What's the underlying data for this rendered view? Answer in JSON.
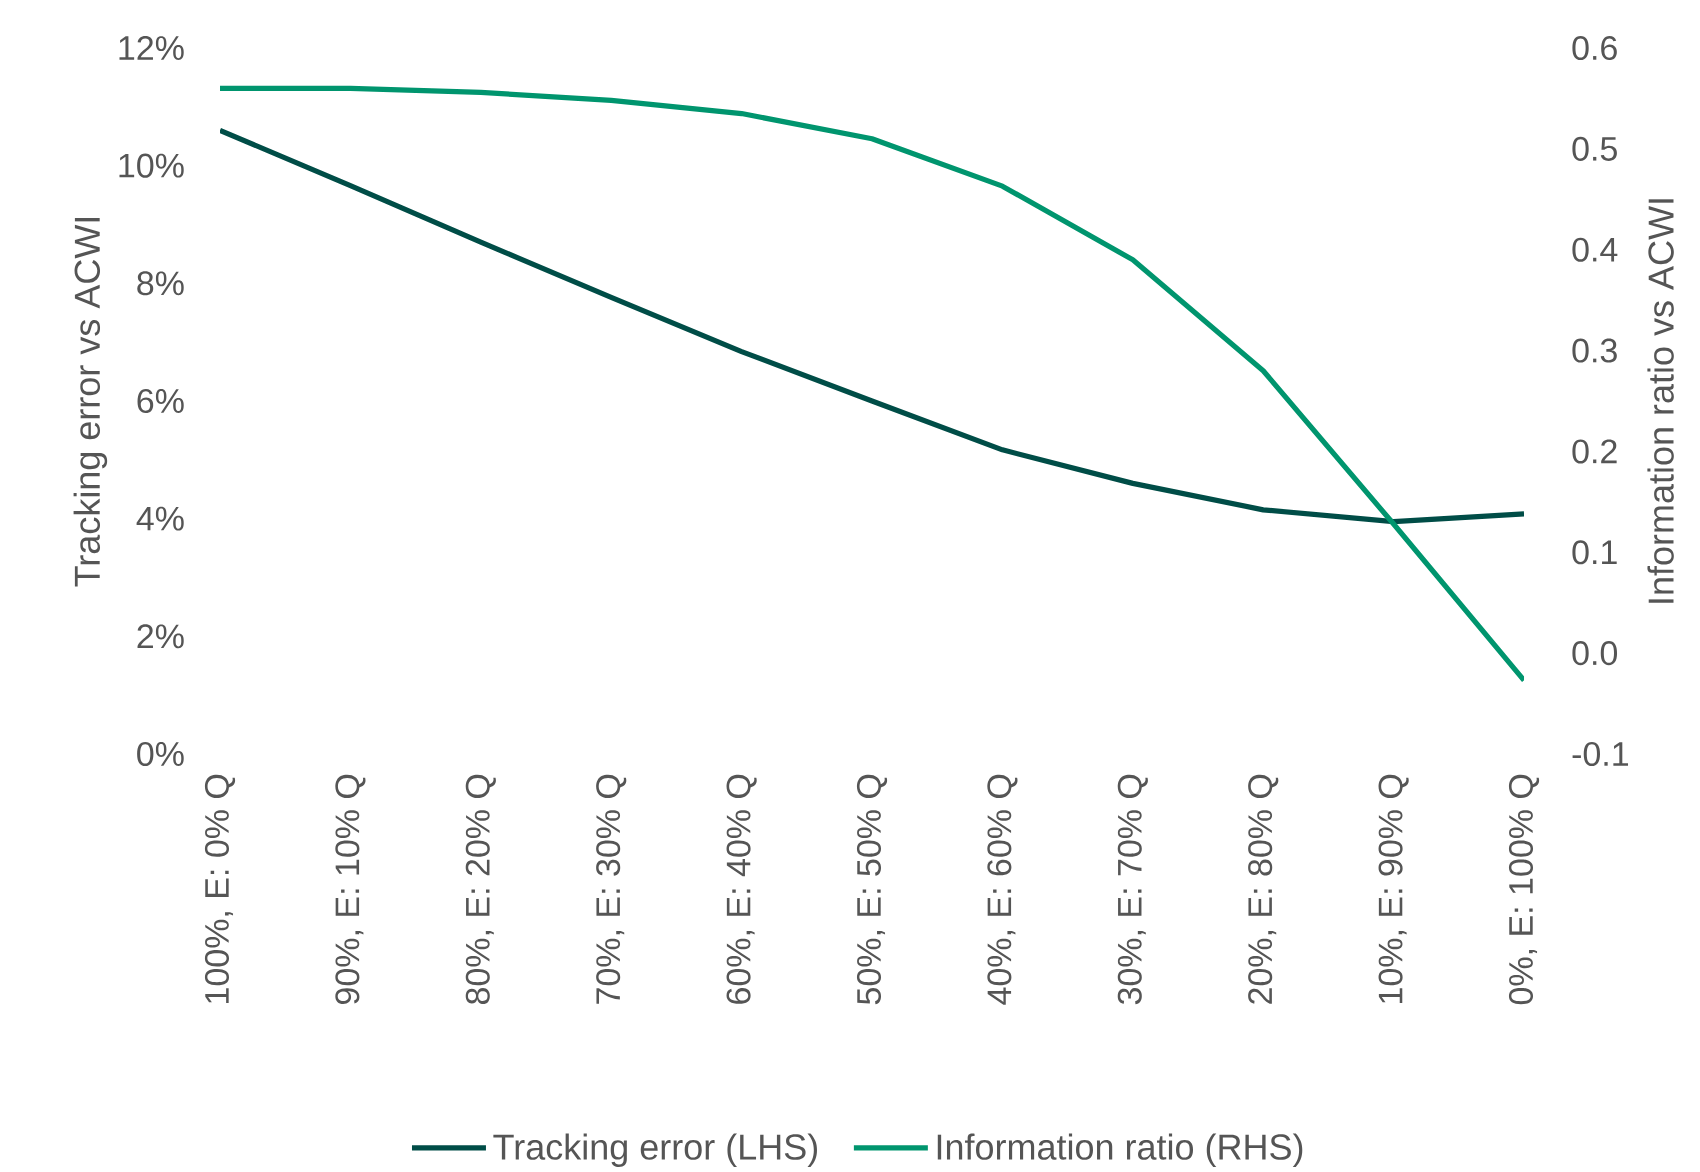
{
  "chart_data": {
    "type": "line",
    "categories": [
      "100%, E: 0% Q",
      "90%, E: 10% Q",
      "80%, E: 20% Q",
      "70%, E: 30% Q",
      "60%, E: 40% Q",
      "50%, E: 50% Q",
      "40%, E: 60% Q",
      "30%, E: 70% Q",
      "20%, E: 80% Q",
      "10%, E: 90% Q",
      "0%, E: 100% Q"
    ],
    "series": [
      {
        "name": "Tracking error (LHS)",
        "color": "#004d47",
        "values": [
          10.6,
          9.66,
          8.7,
          7.76,
          6.84,
          6.0,
          5.17,
          4.6,
          4.15,
          3.95,
          4.08
        ]
      },
      {
        "name": "Information ratio (RHS)",
        "color": "#00956e",
        "axis": "y2",
        "values": [
          0.56,
          0.56,
          0.556,
          0.548,
          0.535,
          0.51,
          0.463,
          0.39,
          0.28,
          0.128,
          -0.027
        ]
      }
    ],
    "ylabel": "Tracking error vs ACWI",
    "y2label": "Information ratio vs ACWI",
    "ylim": [
      0,
      12
    ],
    "yticks": [
      {
        "value": 0,
        "label": "0%"
      },
      {
        "value": 2,
        "label": "2%"
      },
      {
        "value": 4,
        "label": "4%"
      },
      {
        "value": 6,
        "label": "6%"
      },
      {
        "value": 8,
        "label": "8%"
      },
      {
        "value": 10,
        "label": "10%"
      },
      {
        "value": 12,
        "label": "12%"
      }
    ],
    "y2lim": [
      -0.1,
      0.6
    ],
    "y2ticks": [
      {
        "value": -0.1,
        "label": "-0.1"
      },
      {
        "value": 0,
        "label": "0.0"
      },
      {
        "value": 0.1,
        "label": "0.1"
      },
      {
        "value": 0.2,
        "label": "0.2"
      },
      {
        "value": 0.3,
        "label": "0.3"
      },
      {
        "value": 0.4,
        "label": "0.4"
      },
      {
        "value": 0.5,
        "label": "0.5"
      },
      {
        "value": 0.6,
        "label": "0.6"
      }
    ],
    "legend": "bottom",
    "marker": "none",
    "line_style": "solid"
  }
}
